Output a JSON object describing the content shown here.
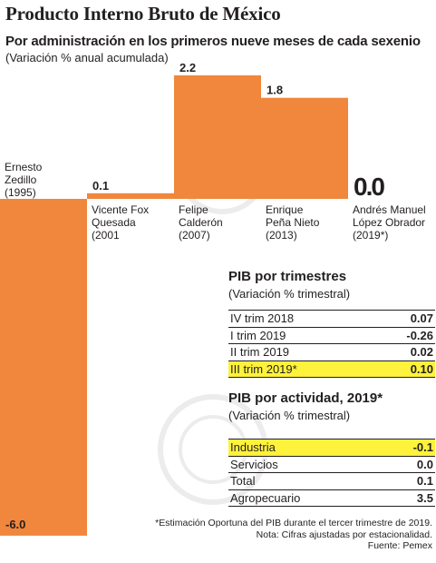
{
  "title": "Producto Interno Bruto de México",
  "subtitle": "Por administración en los primeros nueve meses de cada sexenio",
  "note": "(Variación % anual acumulada)",
  "colors": {
    "bar": "#f0873c",
    "highlight": "#fff23c",
    "text": "#231f20"
  },
  "chart_data": {
    "type": "bar",
    "categories": [
      [
        "Ernesto",
        "Zedillo",
        "(1995)"
      ],
      [
        "Vicente Fox",
        "Quesada",
        "(2001"
      ],
      [
        "Felipe",
        "Calderón",
        "(2007)"
      ],
      [
        "Enrique",
        "Peña Nieto",
        "(2013)"
      ],
      [
        "Andrés Manuel",
        "López Obrador",
        "(2019*)"
      ]
    ],
    "values": [
      -6.0,
      0.1,
      2.2,
      1.8,
      0.0
    ],
    "value_labels": [
      "-6.0",
      "0.1",
      "2.2",
      "1.8",
      "0.0"
    ],
    "ylim": [
      -6.0,
      2.2
    ],
    "grid": false
  },
  "quarters": {
    "title": "PIB por trimestres",
    "note": "(Variación % trimestral)",
    "rows": [
      {
        "label": "IV trim 2018",
        "value": "0.07",
        "highlight": false
      },
      {
        "label": "I trim 2019",
        "value": "-0.26",
        "highlight": false
      },
      {
        "label": "II trim 2019",
        "value": "0.02",
        "highlight": false
      },
      {
        "label": "III trim 2019*",
        "value": "0.10",
        "highlight": true
      }
    ]
  },
  "activity": {
    "title": "PIB por actividad, 2019*",
    "note": "(Variación % trimestral)",
    "rows": [
      {
        "label": "Industria",
        "value": "-0.1",
        "highlight": true
      },
      {
        "label": "Servicios",
        "value": "0.0",
        "highlight": false
      },
      {
        "label": "Total",
        "value": "0.1",
        "highlight": false
      },
      {
        "label": "Agropecuario",
        "value": "3.5",
        "highlight": false
      }
    ]
  },
  "footer": [
    "*Estimación Oportuna del PIB durante el tercer trimestre de 2019.",
    "Nota: Cifras ajustadas por estacionalidad.",
    "Fuente: Pemex"
  ]
}
